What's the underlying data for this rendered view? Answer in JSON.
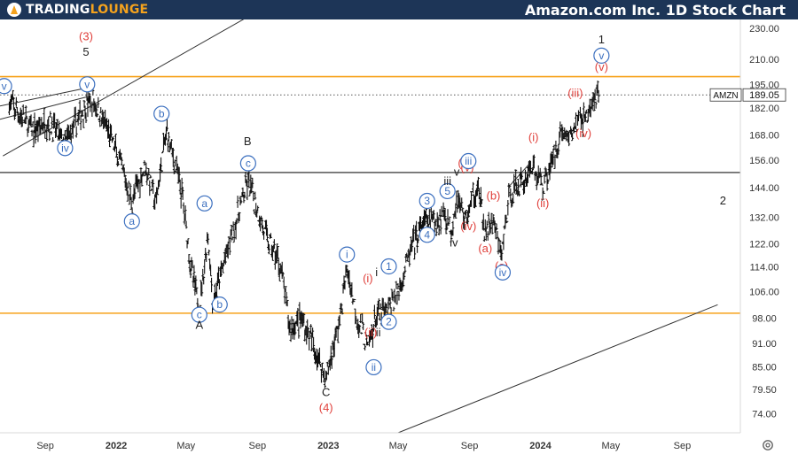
{
  "header": {
    "logo_a": "TRADING",
    "logo_b": "LOUNGE",
    "title": "Amazon.com Inc. 1D Stock Chart"
  },
  "chart_data": {
    "type": "line",
    "ticker": "AMZN",
    "last_price": "189.05",
    "y_ticks": [
      "230.00",
      "210.00",
      "195.00",
      "182.00",
      "168.00",
      "156.00",
      "144.00",
      "132.00",
      "122.00",
      "114.00",
      "106.00",
      "98.00",
      "91.00",
      "85.00",
      "79.50",
      "74.00"
    ],
    "x_ticks": [
      "Sep",
      "2022",
      "May",
      "Sep",
      "2023",
      "May",
      "Sep",
      "2024",
      "May",
      "Sep"
    ],
    "series": [
      {
        "values": [
          {
            "x": "2021-07-01",
            "y": 185
          },
          {
            "x": "2021-08-10",
            "y": 170
          },
          {
            "x": "2021-09-05",
            "y": 175
          },
          {
            "x": "2021-10-05",
            "y": 164
          },
          {
            "x": "2021-11-19",
            "y": 188
          },
          {
            "x": "2021-12-25",
            "y": 165
          },
          {
            "x": "2022-01-28",
            "y": 138
          },
          {
            "x": "2022-02-20",
            "y": 154
          },
          {
            "x": "2022-03-10",
            "y": 137
          },
          {
            "x": "2022-03-29",
            "y": 170
          },
          {
            "x": "2022-04-25",
            "y": 140
          },
          {
            "x": "2022-05-10",
            "y": 113
          },
          {
            "x": "2022-05-24",
            "y": 101
          },
          {
            "x": "2022-06-08",
            "y": 125
          },
          {
            "x": "2022-06-16",
            "y": 102
          },
          {
            "x": "2022-07-05",
            "y": 115
          },
          {
            "x": "2022-08-16",
            "y": 146
          },
          {
            "x": "2022-09-15",
            "y": 125
          },
          {
            "x": "2022-10-10",
            "y": 115
          },
          {
            "x": "2022-10-27",
            "y": 95
          },
          {
            "x": "2022-11-15",
            "y": 98
          },
          {
            "x": "2022-12-08",
            "y": 90
          },
          {
            "x": "2022-12-28",
            "y": 82
          },
          {
            "x": "2023-01-20",
            "y": 97
          },
          {
            "x": "2023-02-02",
            "y": 113
          },
          {
            "x": "2023-02-20",
            "y": 98
          },
          {
            "x": "2023-03-10",
            "y": 90
          },
          {
            "x": "2023-03-25",
            "y": 99
          },
          {
            "x": "2023-04-12",
            "y": 100
          },
          {
            "x": "2023-05-01",
            "y": 106
          },
          {
            "x": "2023-05-25",
            "y": 121
          },
          {
            "x": "2023-06-15",
            "y": 130
          },
          {
            "x": "2023-07-05",
            "y": 130
          },
          {
            "x": "2023-07-20",
            "y": 134
          },
          {
            "x": "2023-08-01",
            "y": 127
          },
          {
            "x": "2023-08-10",
            "y": 140
          },
          {
            "x": "2023-08-25",
            "y": 131
          },
          {
            "x": "2023-09-15",
            "y": 145
          },
          {
            "x": "2023-09-28",
            "y": 125
          },
          {
            "x": "2023-10-10",
            "y": 131
          },
          {
            "x": "2023-10-26",
            "y": 118
          },
          {
            "x": "2023-11-10",
            "y": 142
          },
          {
            "x": "2023-12-05",
            "y": 147
          },
          {
            "x": "2023-12-15",
            "y": 154
          },
          {
            "x": "2024-01-05",
            "y": 145
          },
          {
            "x": "2024-01-25",
            "y": 158
          },
          {
            "x": "2024-02-05",
            "y": 170
          },
          {
            "x": "2024-02-20",
            "y": 167
          },
          {
            "x": "2024-03-05",
            "y": 175
          },
          {
            "x": "2024-03-20",
            "y": 178
          },
          {
            "x": "2024-04-10",
            "y": 189
          }
        ]
      }
    ],
    "horizontal_lines": [
      {
        "y": 199.5,
        "color": "#f7a21b"
      },
      {
        "y": 150.5,
        "color": "#555555"
      },
      {
        "y": 99.5,
        "color": "#f7a21b"
      }
    ],
    "trendlines": [
      {
        "from": {
          "x": "2021-06-20",
          "y": 158
        },
        "to": {
          "x": "2022-09-15",
          "y": 245
        },
        "color": "#333333"
      },
      {
        "from": {
          "x": "2023-05-01",
          "y": 70
        },
        "to": {
          "x": "2024-11-01",
          "y": 102
        },
        "color": "#333333"
      }
    ],
    "annotations": [
      {
        "text": "(3)",
        "x": "2021-11-10",
        "y": 222,
        "color": "#e0413c",
        "style": "plain"
      },
      {
        "text": "5",
        "x": "2021-11-10",
        "y": 212,
        "color": "#222222",
        "style": "plain"
      },
      {
        "text": "v",
        "x": "2021-11-12",
        "y": 193,
        "color": "#3b6fbf",
        "style": "circle"
      },
      {
        "text": "v",
        "x": "2021-06-22",
        "y": 192,
        "color": "#3b6fbf",
        "style": "circle"
      },
      {
        "text": "iv",
        "x": "2021-10-05",
        "y": 160,
        "color": "#3b6fbf",
        "style": "circle"
      },
      {
        "text": "b",
        "x": "2022-03-20",
        "y": 177,
        "color": "#3b6fbf",
        "style": "circle"
      },
      {
        "text": "a",
        "x": "2022-01-28",
        "y": 129,
        "color": "#3b6fbf",
        "style": "circle"
      },
      {
        "text": "a",
        "x": "2022-06-02",
        "y": 136,
        "color": "#3b6fbf",
        "style": "circle"
      },
      {
        "text": "c",
        "x": "2022-05-24",
        "y": 98,
        "color": "#3b6fbf",
        "style": "circle"
      },
      {
        "text": "A",
        "x": "2022-05-24",
        "y": 95,
        "color": "#222222",
        "style": "plain"
      },
      {
        "text": "b",
        "x": "2022-06-28",
        "y": 101,
        "color": "#3b6fbf",
        "style": "circle"
      },
      {
        "text": "B",
        "x": "2022-08-15",
        "y": 163,
        "color": "#222222",
        "style": "plain"
      },
      {
        "text": "c",
        "x": "2022-08-16",
        "y": 153,
        "color": "#3b6fbf",
        "style": "circle"
      },
      {
        "text": "i",
        "x": "2023-02-02",
        "y": 117,
        "color": "#3b6fbf",
        "style": "circle"
      },
      {
        "text": "(i)",
        "x": "2023-03-10",
        "y": 109,
        "color": "#e0413c",
        "style": "plain"
      },
      {
        "text": "i",
        "x": "2023-03-25",
        "y": 111,
        "color": "#222222",
        "style": "plain"
      },
      {
        "text": "1",
        "x": "2023-04-15",
        "y": 113,
        "color": "#3b6fbf",
        "style": "circle"
      },
      {
        "text": "(ii)",
        "x": "2023-03-15",
        "y": 93,
        "color": "#e0413c",
        "style": "plain"
      },
      {
        "text": "ii",
        "x": "2023-03-28",
        "y": 93,
        "color": "#222222",
        "style": "plain"
      },
      {
        "text": "2",
        "x": "2023-04-15",
        "y": 96,
        "color": "#3b6fbf",
        "style": "circle"
      },
      {
        "text": "ii",
        "x": "2023-03-20",
        "y": 84,
        "color": "#3b6fbf",
        "style": "circle"
      },
      {
        "text": "C",
        "x": "2022-12-28",
        "y": 78,
        "color": "#222222",
        "style": "plain"
      },
      {
        "text": "(4)",
        "x": "2022-12-28",
        "y": 74.5,
        "color": "#e0413c",
        "style": "plain"
      },
      {
        "text": "3",
        "x": "2023-06-20",
        "y": 137,
        "color": "#3b6fbf",
        "style": "circle"
      },
      {
        "text": "4",
        "x": "2023-06-20",
        "y": 124,
        "color": "#3b6fbf",
        "style": "circle"
      },
      {
        "text": "5",
        "x": "2023-07-25",
        "y": 141,
        "color": "#3b6fbf",
        "style": "circle"
      },
      {
        "text": "iii",
        "x": "2023-07-25",
        "y": 145,
        "color": "#222222",
        "style": "plain"
      },
      {
        "text": "v",
        "x": "2023-08-10",
        "y": 149,
        "color": "#222222",
        "style": "plain"
      },
      {
        "text": "(iii)",
        "x": "2023-08-25",
        "y": 153,
        "color": "#e0413c",
        "style": "plain"
      },
      {
        "text": "(v)",
        "x": "2023-08-28",
        "y": 151,
        "color": "#e0413c",
        "style": "plain"
      },
      {
        "text": "iii",
        "x": "2023-08-30",
        "y": 154,
        "color": "#3b6fbf",
        "style": "circle"
      },
      {
        "text": "(iv)",
        "x": "2023-08-30",
        "y": 127,
        "color": "#e0413c",
        "style": "plain"
      },
      {
        "text": "iv",
        "x": "2023-08-05",
        "y": 121,
        "color": "#222222",
        "style": "plain"
      },
      {
        "text": "(b)",
        "x": "2023-10-12",
        "y": 139,
        "color": "#e0413c",
        "style": "plain"
      },
      {
        "text": "(a)",
        "x": "2023-09-28",
        "y": 119,
        "color": "#e0413c",
        "style": "plain"
      },
      {
        "text": "(c)",
        "x": "2023-10-26",
        "y": 113,
        "color": "#e0413c",
        "style": "plain"
      },
      {
        "text": "iv",
        "x": "2023-10-28",
        "y": 111,
        "color": "#3b6fbf",
        "style": "circle"
      },
      {
        "text": "(i)",
        "x": "2023-12-20",
        "y": 165,
        "color": "#e0413c",
        "style": "plain"
      },
      {
        "text": "(ii)",
        "x": "2024-01-05",
        "y": 136,
        "color": "#e0413c",
        "style": "plain"
      },
      {
        "text": "(iii)",
        "x": "2024-03-01",
        "y": 188,
        "color": "#e0413c",
        "style": "plain"
      },
      {
        "text": "(iv)",
        "x": "2024-03-15",
        "y": 167,
        "color": "#e0413c",
        "style": "plain"
      },
      {
        "text": "1",
        "x": "2024-04-15",
        "y": 220,
        "color": "#222222",
        "style": "plain"
      },
      {
        "text": "v",
        "x": "2024-04-15",
        "y": 210,
        "color": "#3b6fbf",
        "style": "circle"
      },
      {
        "text": "(v)",
        "x": "2024-04-15",
        "y": 203,
        "color": "#e0413c",
        "style": "plain"
      },
      {
        "text": "2",
        "x": "2024-11-10",
        "y": 137,
        "color": "#222222",
        "style": "plain"
      }
    ]
  }
}
